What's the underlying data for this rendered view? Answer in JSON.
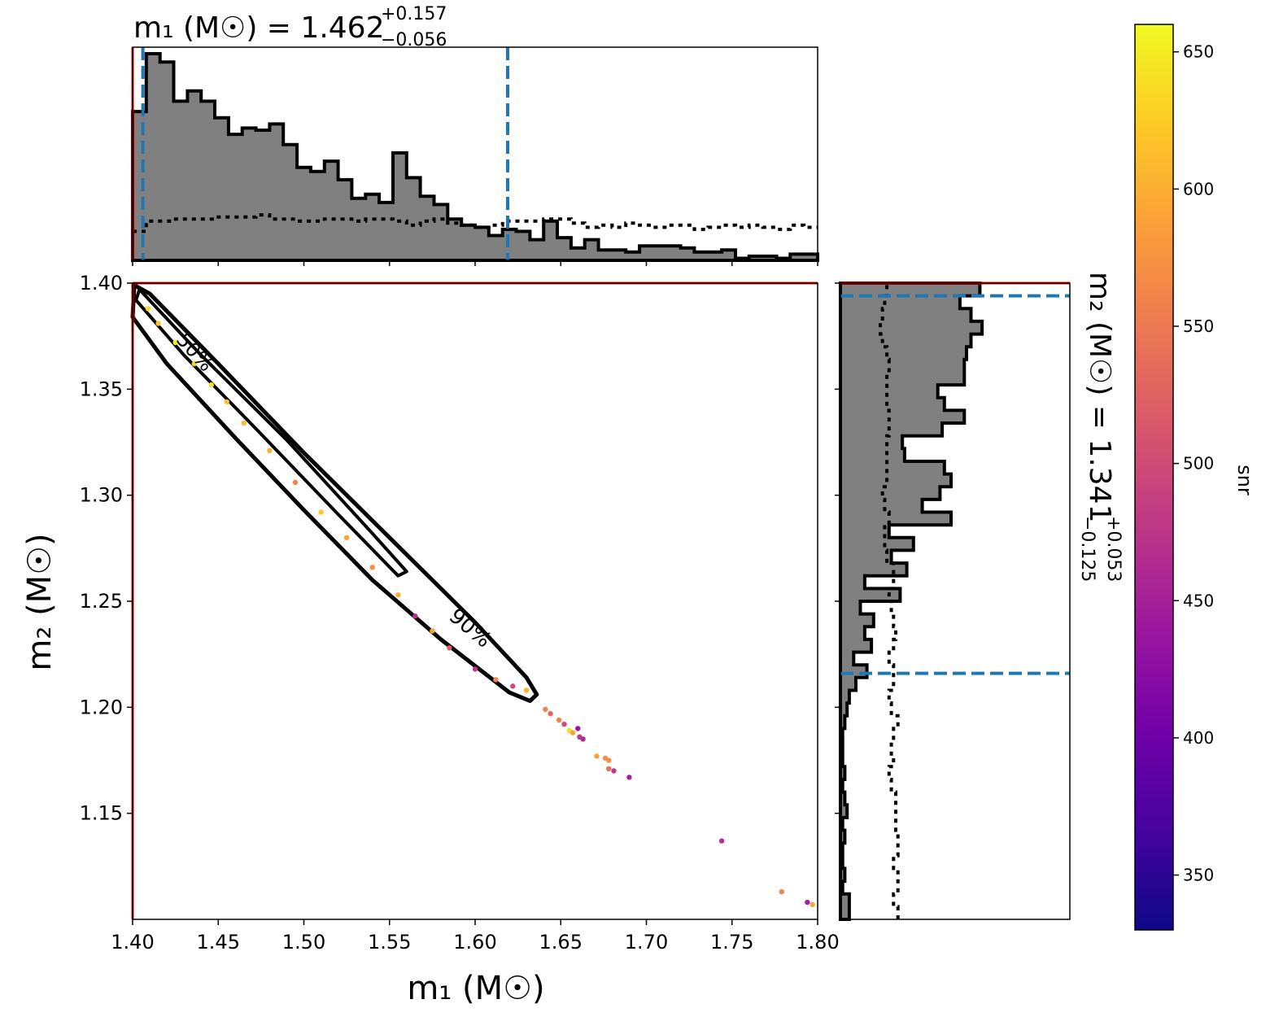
{
  "chart_data": [
    {
      "type": "scatter",
      "panel": "joint-posterior",
      "xlabel": "m₁ (M☉)",
      "ylabel": "m₂ (M☉)",
      "xlim": [
        1.4,
        1.8
      ],
      "ylim": [
        1.1,
        1.4
      ],
      "xticks": [
        "1.40",
        "1.45",
        "1.50",
        "1.55",
        "1.60",
        "1.65",
        "1.70",
        "1.75",
        "1.80"
      ],
      "yticks": [
        "1.15",
        "1.20",
        "1.25",
        "1.30",
        "1.35",
        "1.40"
      ],
      "contour_labels": [
        "50%",
        "90%"
      ],
      "boundary_line": {
        "x": 1.4,
        "y": 1.4,
        "color": "#ff0000"
      },
      "points": [
        {
          "x": 1.409,
          "y": 1.388,
          "c": 640
        },
        {
          "x": 1.415,
          "y": 1.381,
          "c": 620
        },
        {
          "x": 1.425,
          "y": 1.372,
          "c": 650
        },
        {
          "x": 1.436,
          "y": 1.362,
          "c": 630
        },
        {
          "x": 1.446,
          "y": 1.352,
          "c": 640
        },
        {
          "x": 1.455,
          "y": 1.344,
          "c": 615
        },
        {
          "x": 1.465,
          "y": 1.334,
          "c": 610
        },
        {
          "x": 1.48,
          "y": 1.321,
          "c": 600
        },
        {
          "x": 1.495,
          "y": 1.306,
          "c": 560
        },
        {
          "x": 1.51,
          "y": 1.292,
          "c": 620
        },
        {
          "x": 1.525,
          "y": 1.28,
          "c": 590
        },
        {
          "x": 1.54,
          "y": 1.266,
          "c": 570
        },
        {
          "x": 1.555,
          "y": 1.253,
          "c": 600
        },
        {
          "x": 1.565,
          "y": 1.243,
          "c": 470
        },
        {
          "x": 1.575,
          "y": 1.236,
          "c": 590
        },
        {
          "x": 1.585,
          "y": 1.228,
          "c": 520
        },
        {
          "x": 1.6,
          "y": 1.218,
          "c": 480
        },
        {
          "x": 1.612,
          "y": 1.213,
          "c": 560
        },
        {
          "x": 1.622,
          "y": 1.21,
          "c": 500
        },
        {
          "x": 1.63,
          "y": 1.208,
          "c": 600
        },
        {
          "x": 1.641,
          "y": 1.199,
          "c": 560
        },
        {
          "x": 1.644,
          "y": 1.197,
          "c": 530
        },
        {
          "x": 1.649,
          "y": 1.194,
          "c": 560
        },
        {
          "x": 1.652,
          "y": 1.192,
          "c": 500
        },
        {
          "x": 1.655,
          "y": 1.189,
          "c": 640
        },
        {
          "x": 1.657,
          "y": 1.188,
          "c": 590
        },
        {
          "x": 1.66,
          "y": 1.19,
          "c": 440
        },
        {
          "x": 1.661,
          "y": 1.186,
          "c": 480
        },
        {
          "x": 1.663,
          "y": 1.185,
          "c": 460
        },
        {
          "x": 1.671,
          "y": 1.177,
          "c": 590
        },
        {
          "x": 1.676,
          "y": 1.176,
          "c": 570
        },
        {
          "x": 1.678,
          "y": 1.175,
          "c": 570
        },
        {
          "x": 1.678,
          "y": 1.171,
          "c": 540
        },
        {
          "x": 1.681,
          "y": 1.17,
          "c": 480
        },
        {
          "x": 1.69,
          "y": 1.167,
          "c": 450
        },
        {
          "x": 1.744,
          "y": 1.137,
          "c": 470
        },
        {
          "x": 1.779,
          "y": 1.113,
          "c": 560
        },
        {
          "x": 1.794,
          "y": 1.108,
          "c": 450
        },
        {
          "x": 1.797,
          "y": 1.107,
          "c": 590
        }
      ]
    },
    {
      "type": "bar",
      "panel": "m1-marginal-histogram",
      "title_main": "m₁ (M☉) = 1.462",
      "title_sup": "+0.157",
      "title_sub": "−0.056",
      "xlim": [
        1.4,
        1.8
      ],
      "bin_width": 0.008,
      "bins_start": 1.4,
      "values": [
        0.72,
        1.0,
        0.96,
        0.77,
        0.82,
        0.77,
        0.69,
        0.61,
        0.64,
        0.63,
        0.66,
        0.56,
        0.45,
        0.43,
        0.48,
        0.39,
        0.3,
        0.32,
        0.28,
        0.52,
        0.4,
        0.31,
        0.27,
        0.2,
        0.17,
        0.16,
        0.12,
        0.15,
        0.14,
        0.1,
        0.19,
        0.11,
        0.06,
        0.1,
        0.05,
        0.05,
        0.04,
        0.07,
        0.07,
        0.07,
        0.06,
        0.04,
        0.04,
        0.05,
        0.01,
        0.02,
        0.02,
        0.01,
        0.03,
        0.03
      ],
      "prior_values": [
        0.14,
        0.19,
        0.19,
        0.2,
        0.2,
        0.2,
        0.21,
        0.21,
        0.21,
        0.22,
        0.2,
        0.2,
        0.19,
        0.19,
        0.2,
        0.2,
        0.19,
        0.2,
        0.2,
        0.19,
        0.17,
        0.19,
        0.2,
        0.18,
        0.17,
        0.16,
        0.17,
        0.19,
        0.19,
        0.19,
        0.2,
        0.2,
        0.18,
        0.16,
        0.17,
        0.16,
        0.18,
        0.17,
        0.16,
        0.17,
        0.17,
        0.15,
        0.16,
        0.17,
        0.16,
        0.17,
        0.16,
        0.15,
        0.17,
        0.16
      ],
      "credible_interval": [
        1.406,
        1.619
      ]
    },
    {
      "type": "bar",
      "panel": "m2-marginal-histogram",
      "orientation": "horizontal",
      "title_main": "m₂ (M☉) = 1.341",
      "title_sup": "+0.053",
      "title_sub": "−0.125",
      "ylim": [
        1.1,
        1.4
      ],
      "bin_width": 0.006,
      "bins_start": 1.1,
      "values": [
        0.04,
        0.04,
        0.01,
        0.02,
        0.01,
        0.01,
        0.02,
        0.01,
        0.03,
        0.02,
        0.01,
        0.02,
        0.01,
        0.01,
        0.01,
        0.02,
        0.03,
        0.04,
        0.07,
        0.12,
        0.06,
        0.14,
        0.11,
        0.15,
        0.09,
        0.27,
        0.11,
        0.3,
        0.23,
        0.33,
        0.22,
        0.5,
        0.37,
        0.45,
        0.5,
        0.47,
        0.29,
        0.28,
        0.46,
        0.56,
        0.47,
        0.44,
        0.56,
        0.56,
        0.57,
        0.59,
        0.64,
        0.59,
        0.54,
        0.63
      ],
      "prior_values": [
        0.26,
        0.24,
        0.26,
        0.26,
        0.24,
        0.26,
        0.26,
        0.25,
        0.25,
        0.25,
        0.23,
        0.22,
        0.24,
        0.23,
        0.24,
        0.26,
        0.23,
        0.22,
        0.24,
        0.24,
        0.22,
        0.24,
        0.25,
        0.24,
        0.23,
        0.22,
        0.24,
        0.24,
        0.21,
        0.2,
        0.2,
        0.22,
        0.2,
        0.19,
        0.21,
        0.21,
        0.21,
        0.21,
        0.22,
        0.22,
        0.21,
        0.21,
        0.21,
        0.22,
        0.21,
        0.19,
        0.18,
        0.19,
        0.2,
        0.21
      ],
      "credible_interval": [
        1.216,
        1.394
      ]
    },
    {
      "type": "heatmap",
      "panel": "colorbar",
      "label": "snr",
      "range": [
        330,
        660
      ],
      "ticks": [
        "350",
        "400",
        "450",
        "500",
        "550",
        "600",
        "650"
      ],
      "colormap": "plasma",
      "colormap_stops": [
        "#0d0887",
        "#46039f",
        "#7201a8",
        "#9c179e",
        "#bd3786",
        "#d8576b",
        "#ed7953",
        "#fb9f3a",
        "#fdca26",
        "#f0f921"
      ]
    }
  ]
}
